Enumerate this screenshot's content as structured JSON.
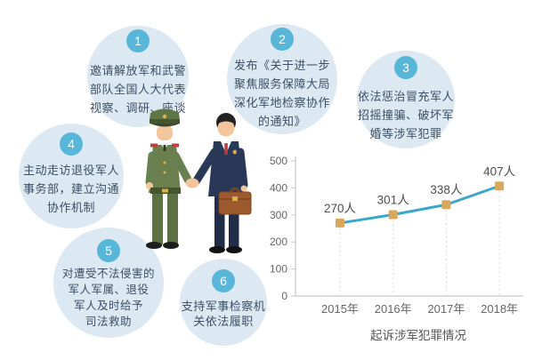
{
  "steps": [
    {
      "num": "1",
      "lines": [
        "邀请解放军和武警",
        "部队全国人大代表",
        "视察、调研、座谈"
      ]
    },
    {
      "num": "2",
      "lines": [
        "发布《关于进一步",
        "聚焦服务保障大局",
        "深化军地检察协作",
        "的通知》"
      ]
    },
    {
      "num": "3",
      "lines": [
        "依法惩治冒充军人",
        "招摇撞骗、破坏军",
        "婚等涉军犯罪"
      ]
    },
    {
      "num": "4",
      "lines": [
        "主动走访退役军人",
        "事务部，建立沟通",
        "协作机制"
      ]
    },
    {
      "num": "5",
      "lines": [
        "对遭受不法侵害的",
        "军人军属、退役",
        "军人及时给予",
        "司法救助"
      ]
    },
    {
      "num": "6",
      "lines": [
        "支持军事检察机",
        "关依法履职"
      ]
    }
  ],
  "illustration": {
    "name": "military-officer-and-prosecutor-handshake"
  },
  "chart_data": {
    "type": "line",
    "x": [
      "2015年",
      "2016年",
      "2017年",
      "2018年"
    ],
    "values": [
      270,
      301,
      338,
      407
    ],
    "point_labels": [
      "270人",
      "301人",
      "338人",
      "407人"
    ],
    "title": "起诉涉军犯罪情况",
    "ylim": [
      0,
      500
    ],
    "yticks": [
      0,
      100,
      200,
      300,
      400,
      500
    ],
    "grid": false,
    "legend": "none",
    "line_color": "#3ba7cb",
    "marker_color": "#d8a75a",
    "marker": "square",
    "axis_color": "#c8c8c8",
    "dropline_color": "#cfcfcf",
    "label_color": "#4d4d4d",
    "tick_color": "#666666",
    "title_color": "#555555"
  },
  "colors": {
    "bubble_fill": "#dce8f2",
    "badge_fill": "#58b6d9",
    "step_text": "#3d5065"
  }
}
